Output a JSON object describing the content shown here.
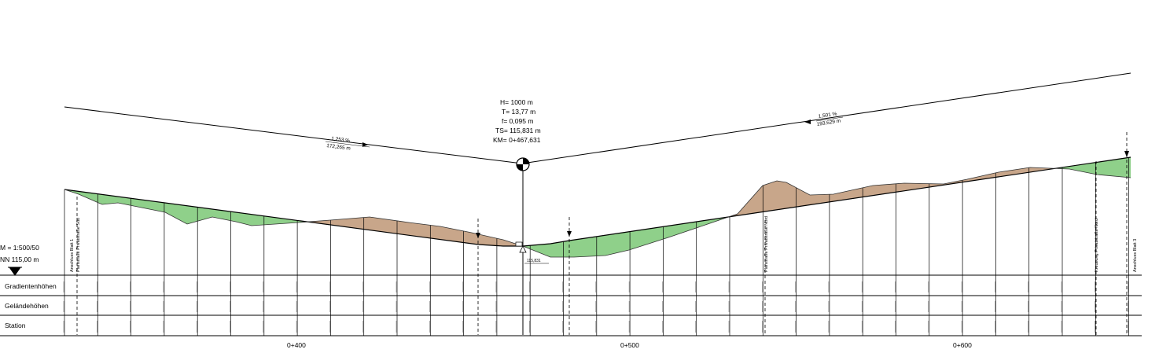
{
  "colors": {
    "fill_color": "#8fd08a",
    "cut_color": "#c8a68a",
    "line_color": "#000000"
  },
  "scale": {
    "scale_label": "M = 1:500/50",
    "datum_label": "NN  115,00 m"
  },
  "curve": {
    "h_label": "H=   1000 m",
    "t_label": "T=  13,77 m",
    "f_label": "f=  0,095 m",
    "ts_label": "TS=  115,831 m",
    "km_label": "KM=  0+467,631",
    "low_point_label": "115,831"
  },
  "grades": {
    "left_percent": "1,253 %",
    "left_length": "172,265 m",
    "right_percent": "1,501 %",
    "right_length": "193,629 m"
  },
  "band_rows": [
    "Gradientenhöhen",
    "Geländehöhen",
    "Station"
  ],
  "station_ticks": [
    "0+400",
    "0+500",
    "0+600"
  ],
  "vertical_annotations": [
    "Anschluss Blatt 1",
    "Planstraße Privatstraße Süd",
    "Planstraße Privatstraße Nord",
    "Kreuzung Privatstraße Nord",
    "Anschluss Blatt 3"
  ]
}
